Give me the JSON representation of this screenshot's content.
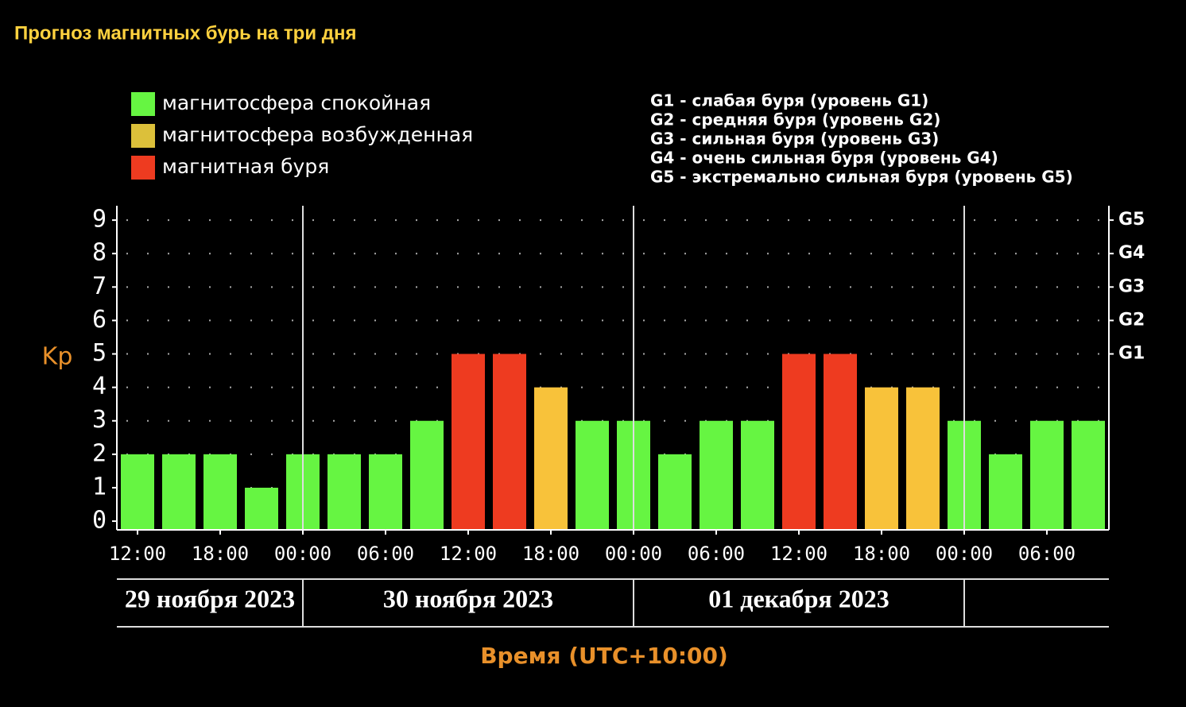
{
  "chart_data": {
    "type": "bar",
    "title": "Прогноз магнитных бурь на три дня",
    "y_label": "Kp",
    "x_label": "Время (UTC+10:00)",
    "legend": [
      {
        "name": "магнитосфера спокойная",
        "color": "#66f542"
      },
      {
        "name": "магнитосфера возбужденная",
        "color": "#dcc03a"
      },
      {
        "name": "магнитная буря",
        "color": "#ee3b20"
      }
    ],
    "scale_notes": [
      "G1 - слабая буря (уровень G1)",
      "G2 - средняя буря (уровень G2)",
      "G3 - сильная буря (уровень G3)",
      "G4 - очень сильная буря (уровень G4)",
      "G5 - экстремально сильная буря (уровень G5)"
    ],
    "x": [
      12,
      15,
      18,
      21,
      24,
      27,
      30,
      33,
      36,
      39,
      42,
      45,
      48,
      51,
      54,
      57,
      60,
      63,
      66,
      69,
      72,
      75,
      78,
      81
    ],
    "values": [
      2,
      2,
      2,
      1,
      2,
      2,
      2,
      3,
      5,
      5,
      4,
      3,
      3,
      2,
      3,
      3,
      5,
      5,
      4,
      4,
      3,
      2,
      3,
      3
    ],
    "colors": [
      "#66f542",
      "#66f542",
      "#66f542",
      "#66f542",
      "#66f542",
      "#66f542",
      "#66f542",
      "#66f542",
      "#ee3b20",
      "#ee3b20",
      "#f8c23a",
      "#66f542",
      "#66f542",
      "#66f542",
      "#66f542",
      "#66f542",
      "#ee3b20",
      "#ee3b20",
      "#f8c23a",
      "#f8c23a",
      "#66f542",
      "#66f542",
      "#66f542",
      "#66f542"
    ],
    "xlim": [
      10.5,
      82.5
    ],
    "xticks": [
      {
        "value": 12,
        "label": "12:00"
      },
      {
        "value": 18,
        "label": "18:00"
      },
      {
        "value": 24,
        "label": "00:00"
      },
      {
        "value": 30,
        "label": "06:00"
      },
      {
        "value": 36,
        "label": "12:00"
      },
      {
        "value": 42,
        "label": "18:00"
      },
      {
        "value": 48,
        "label": "00:00"
      },
      {
        "value": 54,
        "label": "06:00"
      },
      {
        "value": 60,
        "label": "12:00"
      },
      {
        "value": 66,
        "label": "18:00"
      },
      {
        "value": 72,
        "label": "00:00"
      },
      {
        "value": 78,
        "label": "06:00"
      }
    ],
    "day_lines": [
      24,
      48,
      72
    ],
    "days": [
      "29 ноября 2023",
      "30 ноября 2023",
      "01 декабря 2023"
    ],
    "ylim": [
      -0.26,
      9.43
    ],
    "yticks": [
      0,
      1,
      2,
      3,
      4,
      5,
      6,
      7,
      8,
      9
    ],
    "y2lim": [
      -0.26,
      9.43
    ],
    "y2ticks": [
      {
        "value": 5,
        "label": "G1"
      },
      {
        "value": 6,
        "label": "G2"
      },
      {
        "value": 7,
        "label": "G3"
      },
      {
        "value": 8,
        "label": "G4"
      },
      {
        "value": 9,
        "label": "G5"
      }
    ],
    "grid": true
  }
}
